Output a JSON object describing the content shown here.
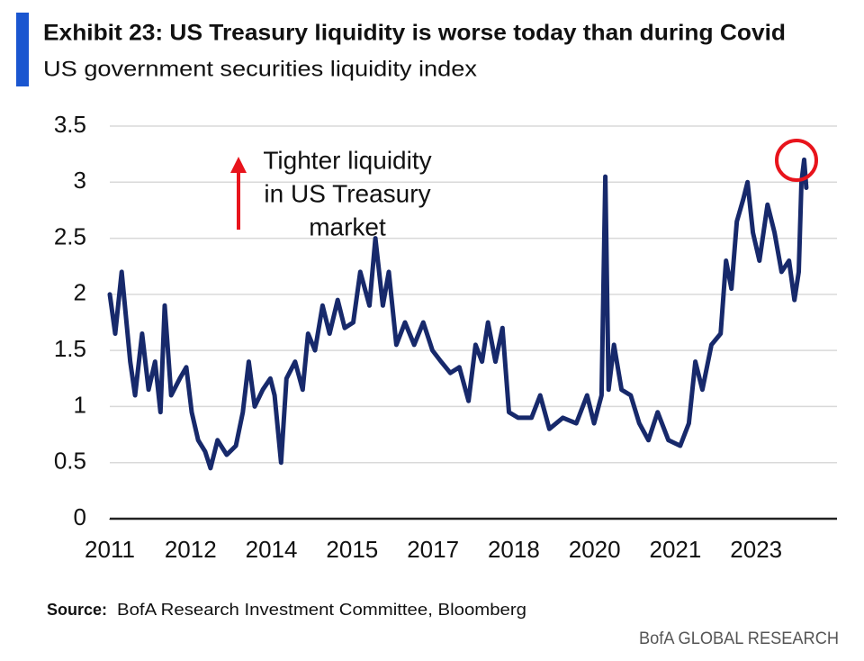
{
  "chart_data": {
    "type": "line",
    "title": "Exhibit 23: US Treasury liquidity is worse today than during Covid",
    "subtitle": "US government securities liquidity index",
    "annotation": [
      "Tighter liquidity",
      "in US Treasury",
      "market"
    ],
    "source_label": "Source:",
    "source": "BofA Research Investment Committee, Bloomberg",
    "footer": "BofA GLOBAL RESEARCH",
    "color": "#17296b",
    "grid": true,
    "xlim": [
      2011,
      2024.5
    ],
    "xticks": [
      2011,
      {
        "value": 2012.5,
        "label": "2012"
      },
      2014,
      {
        "value": 2015.5,
        "label": "2015"
      },
      2017,
      {
        "value": 2018.5,
        "label": "2018"
      },
      2020,
      {
        "value": 2021.5,
        "label": "2021"
      },
      2023
    ],
    "ylim": [
      0,
      3.5
    ],
    "yticks": [
      0,
      0.5,
      1,
      1.5,
      2,
      2.5,
      3,
      3.5
    ],
    "x": [
      2011.0,
      2011.1,
      2011.22,
      2011.38,
      2011.47,
      2011.6,
      2011.72,
      2011.84,
      2011.94,
      2012.02,
      2012.14,
      2012.3,
      2012.42,
      2012.52,
      2012.64,
      2012.77,
      2012.87,
      2013.0,
      2013.17,
      2013.34,
      2013.47,
      2013.58,
      2013.69,
      2013.84,
      2013.98,
      2014.06,
      2014.18,
      2014.28,
      2014.44,
      2014.58,
      2014.68,
      2014.81,
      2014.95,
      2015.08,
      2015.23,
      2015.36,
      2015.52,
      2015.65,
      2015.82,
      2015.93,
      2016.07,
      2016.18,
      2016.32,
      2016.48,
      2016.65,
      2016.82,
      2016.99,
      2017.15,
      2017.32,
      2017.49,
      2017.66,
      2017.79,
      2017.91,
      2018.02,
      2018.16,
      2018.29,
      2018.41,
      2018.58,
      2018.83,
      2018.99,
      2019.16,
      2019.41,
      2019.66,
      2019.86,
      2019.99,
      2020.13,
      2020.2,
      2020.26,
      2020.36,
      2020.5,
      2020.67,
      2020.83,
      2021.0,
      2021.17,
      2021.37,
      2021.59,
      2021.75,
      2021.87,
      2022.0,
      2022.17,
      2022.34,
      2022.44,
      2022.54,
      2022.64,
      2022.76,
      2022.84,
      2022.94,
      2023.06,
      2023.21,
      2023.34,
      2023.47,
      2023.61,
      2023.71,
      2023.79,
      2023.84,
      2023.89,
      2023.93
    ],
    "values": [
      2.0,
      1.65,
      2.2,
      1.4,
      1.1,
      1.65,
      1.15,
      1.4,
      0.95,
      1.9,
      1.1,
      1.25,
      1.35,
      0.95,
      0.7,
      0.6,
      0.45,
      0.7,
      0.57,
      0.65,
      0.95,
      1.4,
      1.0,
      1.15,
      1.25,
      1.1,
      0.5,
      1.25,
      1.4,
      1.15,
      1.65,
      1.5,
      1.9,
      1.65,
      1.95,
      1.7,
      1.75,
      2.2,
      1.9,
      2.5,
      1.9,
      2.2,
      1.55,
      1.75,
      1.55,
      1.75,
      1.5,
      1.4,
      1.3,
      1.35,
      1.05,
      1.55,
      1.4,
      1.75,
      1.4,
      1.7,
      0.95,
      0.9,
      0.9,
      1.1,
      0.8,
      0.9,
      0.85,
      1.1,
      0.85,
      1.1,
      3.05,
      1.15,
      1.55,
      1.15,
      1.1,
      0.85,
      0.7,
      0.95,
      0.7,
      0.65,
      0.85,
      1.4,
      1.15,
      1.55,
      1.65,
      2.3,
      2.05,
      2.65,
      2.85,
      3.0,
      2.55,
      2.3,
      2.8,
      2.55,
      2.2,
      2.3,
      1.95,
      2.2,
      3.0,
      3.2,
      2.95
    ]
  }
}
